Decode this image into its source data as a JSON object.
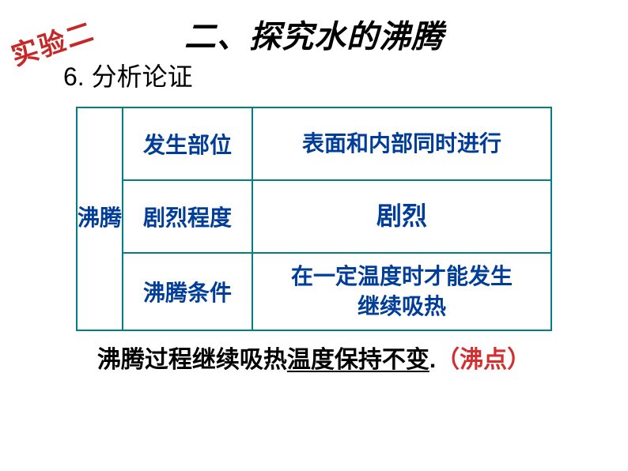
{
  "stamp": "实验二",
  "title": "二、探究水的沸腾",
  "subtitle": "6. 分析论证",
  "table": {
    "row_header": "沸腾",
    "border_color": "#008080",
    "text_color": "#003d99",
    "rows": [
      {
        "prop": "发生部位",
        "val": "表面和内部同时进行"
      },
      {
        "prop": "剧烈程度",
        "val": "剧烈"
      },
      {
        "prop": "沸腾条件",
        "val": "在一定温度时才能发生继续吸热"
      }
    ]
  },
  "bottom": {
    "p1": "沸腾过程继续吸热",
    "p2_underlined": "温度保持不变",
    "p3": ".",
    "p4_red": "（沸点）"
  },
  "colors": {
    "stamp": "#c62828",
    "title": "#000000",
    "red_text": "#d32f2f",
    "table_border": "#008080",
    "table_text": "#003d99",
    "background": "#ffffff"
  },
  "fonts": {
    "title_size": 40,
    "subtitle_size": 32,
    "table_size": 28,
    "bottom_size": 30,
    "stamp_size": 34
  }
}
